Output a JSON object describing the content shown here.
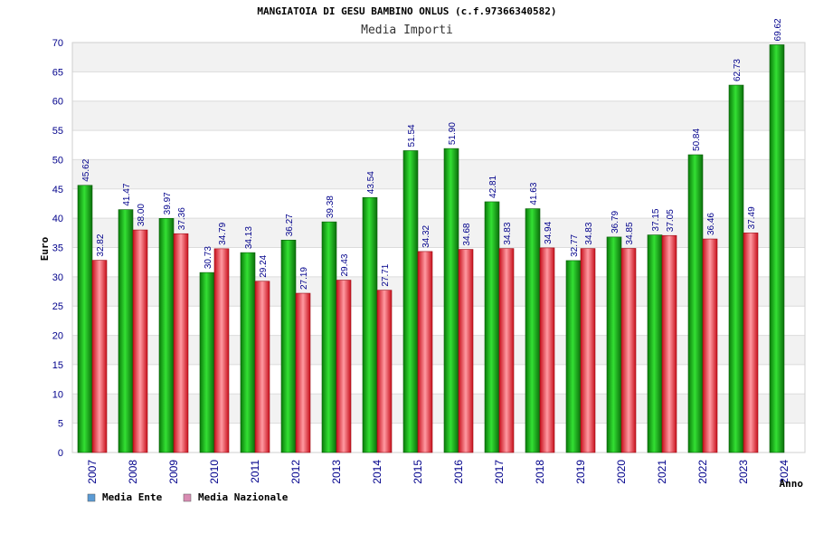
{
  "chart_data": {
    "type": "bar",
    "title": "MANGIATOIA DI GESU BAMBINO ONLUS (c.f.97366340582)",
    "subtitle": "Media Importi",
    "xlabel": "Anno",
    "ylabel": "Euro",
    "ylim": [
      0,
      70
    ],
    "ytick_step": 5,
    "grid": true,
    "legend_position": "bottom-left",
    "categories": [
      "2007",
      "2008",
      "2009",
      "2010",
      "2011",
      "2012",
      "2013",
      "2014",
      "2015",
      "2016",
      "2017",
      "2018",
      "2019",
      "2020",
      "2021",
      "2022",
      "2023",
      "2024"
    ],
    "series": [
      {
        "name": "Media Ente",
        "bar_color": "#1faa1f",
        "legend_color": "#5b9bd5",
        "values": [
          45.62,
          41.47,
          39.97,
          30.73,
          34.13,
          36.27,
          39.38,
          43.54,
          51.54,
          51.9,
          42.81,
          41.63,
          32.77,
          36.79,
          37.15,
          50.84,
          62.73,
          69.62
        ],
        "labels": [
          "45.62",
          "41.47",
          "39.97",
          "30.73",
          "34.13",
          "36.27",
          "39.38",
          "43.54",
          "51.54",
          "51.90",
          "42.81",
          "41.63",
          "32.77",
          "36.79",
          "37.15",
          "50.84",
          "62.73",
          "69.62"
        ]
      },
      {
        "name": "Media Nazionale",
        "bar_color": "#e8323c",
        "legend_color": "#d98cb3",
        "values": [
          32.82,
          38.0,
          37.36,
          34.79,
          29.24,
          27.19,
          29.43,
          27.71,
          34.32,
          34.68,
          34.83,
          34.94,
          34.83,
          34.85,
          37.05,
          36.46,
          37.49,
          null
        ],
        "labels": [
          "32.82",
          "38.00",
          "37.36",
          "34.79",
          "29.24",
          "27.19",
          "29.43",
          "27.71",
          "34.32",
          "34.68",
          "34.83",
          "34.94",
          "34.83",
          "34.85",
          "37.05",
          "36.46",
          "37.49",
          null
        ]
      }
    ]
  }
}
